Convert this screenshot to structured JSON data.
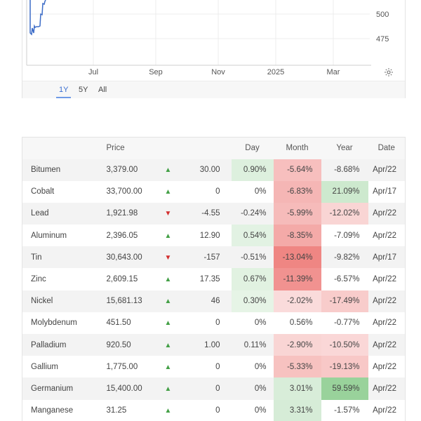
{
  "chart": {
    "x_tick_labels": [
      "Jul",
      "Sep",
      "Nov",
      "2025",
      "Mar"
    ],
    "y_tick_labels": [
      "500",
      "475"
    ],
    "settings_icon": "gear-icon",
    "line_color": "#3c6cc7",
    "periods": [
      {
        "label": "1Y",
        "active": true
      },
      {
        "label": "5Y",
        "active": false
      },
      {
        "label": "All",
        "active": false
      }
    ]
  },
  "table": {
    "headers": {
      "name": "",
      "price": "Price",
      "change": "",
      "day": "Day",
      "month": "Month",
      "year": "Year",
      "date": "Date"
    },
    "colors": {
      "up": "#44a047",
      "down": "#d32f2f"
    },
    "rows": [
      {
        "name": "Bitumen",
        "price": "3,379.00",
        "dir": "up",
        "change": "30.00",
        "day": "0.90%",
        "month": "-5.64%",
        "year": "-8.68%",
        "date": "Apr/22"
      },
      {
        "name": "Cobalt",
        "price": "33,700.00",
        "dir": "up",
        "change": "0",
        "day": "0%",
        "month": "-6.83%",
        "year": "21.09%",
        "date": "Apr/17"
      },
      {
        "name": "Lead",
        "price": "1,921.98",
        "dir": "down",
        "change": "-4.55",
        "day": "-0.24%",
        "month": "-5.99%",
        "year": "-12.02%",
        "date": "Apr/22"
      },
      {
        "name": "Aluminum",
        "price": "2,396.05",
        "dir": "up",
        "change": "12.90",
        "day": "0.54%",
        "month": "-8.35%",
        "year": "-7.09%",
        "date": "Apr/22"
      },
      {
        "name": "Tin",
        "price": "30,643.00",
        "dir": "down",
        "change": "-157",
        "day": "-0.51%",
        "month": "-13.04%",
        "year": "-9.82%",
        "date": "Apr/17"
      },
      {
        "name": "Zinc",
        "price": "2,609.15",
        "dir": "up",
        "change": "17.35",
        "day": "0.67%",
        "month": "-11.39%",
        "year": "-6.57%",
        "date": "Apr/22"
      },
      {
        "name": "Nickel",
        "price": "15,681.13",
        "dir": "up",
        "change": "46",
        "day": "0.30%",
        "month": "-2.02%",
        "year": "-17.49%",
        "date": "Apr/22"
      },
      {
        "name": "Molybdenum",
        "price": "451.50",
        "dir": "up",
        "change": "0",
        "day": "0%",
        "month": "0.56%",
        "year": "-0.77%",
        "date": "Apr/22"
      },
      {
        "name": "Palladium",
        "price": "920.50",
        "dir": "up",
        "change": "1.00",
        "day": "0.11%",
        "month": "-2.90%",
        "year": "-10.50%",
        "date": "Apr/22"
      },
      {
        "name": "Gallium",
        "price": "1,775.00",
        "dir": "up",
        "change": "0",
        "day": "0%",
        "month": "-5.33%",
        "year": "-19.13%",
        "date": "Apr/22"
      },
      {
        "name": "Germanium",
        "price": "15,400.00",
        "dir": "up",
        "change": "0",
        "day": "0%",
        "month": "3.01%",
        "year": "59.59%",
        "date": "Apr/22"
      },
      {
        "name": "Manganese",
        "price": "31.25",
        "dir": "up",
        "change": "0",
        "day": "0%",
        "month": "3.31%",
        "year": "-1.57%",
        "date": "Apr/22"
      }
    ]
  }
}
